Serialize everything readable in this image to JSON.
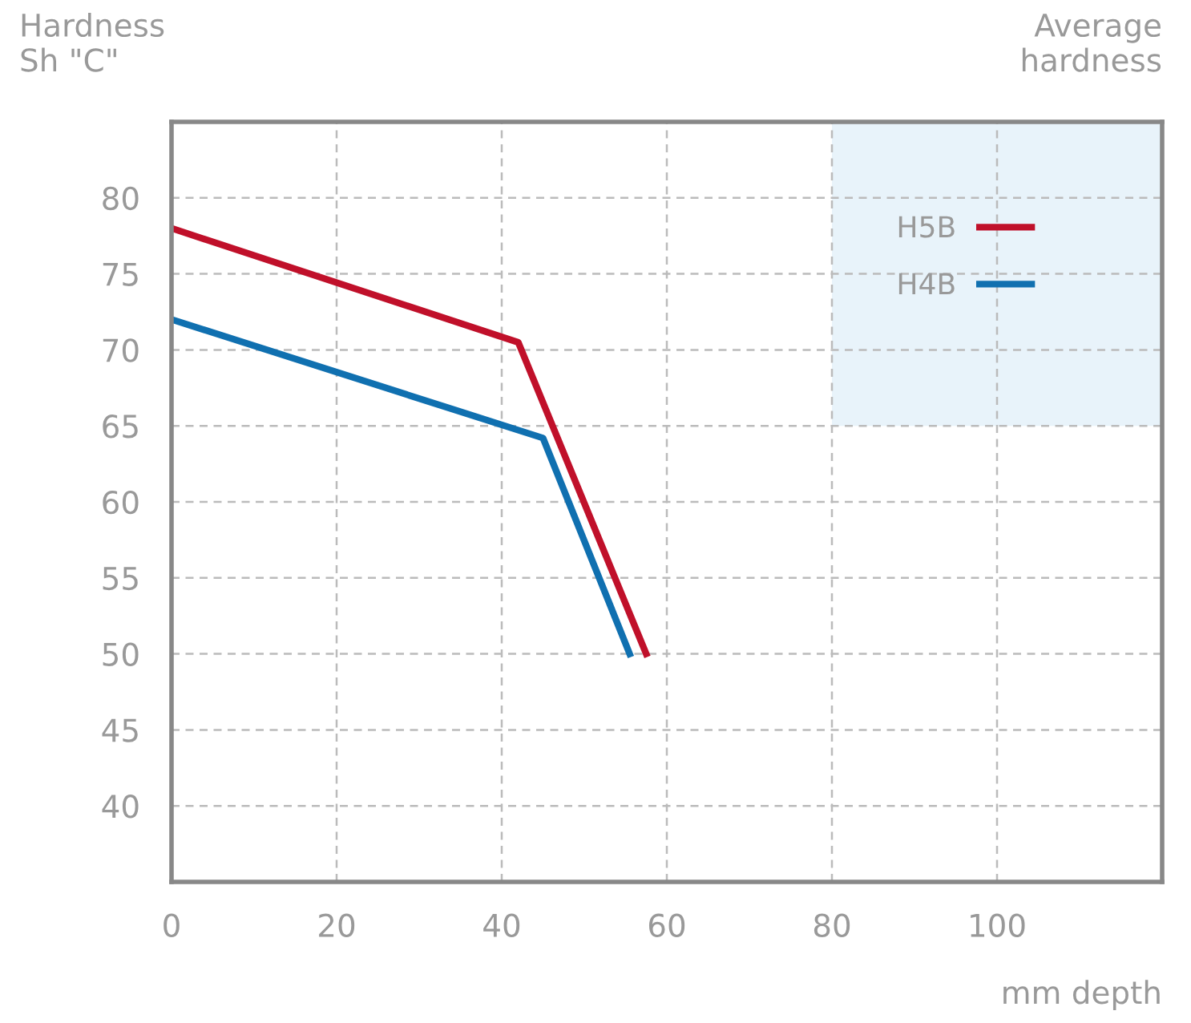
{
  "chart_data": {
    "type": "line",
    "ylabel": "Hardness\nSh \"C\"",
    "xlabel": "mm depth",
    "annotations": [
      "Average\nhardness"
    ],
    "xlim": [
      0,
      120
    ],
    "ylim": [
      35,
      85
    ],
    "xticks": [
      0,
      20,
      40,
      60,
      80,
      100
    ],
    "yticks": [
      40,
      45,
      50,
      55,
      60,
      65,
      70,
      75,
      80
    ],
    "grid": true,
    "legend": "top right",
    "line_style": "solid",
    "marker": "none",
    "bands": [
      {
        "axis": "x",
        "from": 80,
        "to": 120,
        "color": "#e8f3fa"
      }
    ],
    "series": [
      {
        "name": "H5B",
        "color": "#c0102a",
        "x": [
          0,
          42,
          57.5
        ],
        "values": [
          78,
          70.5,
          50
        ]
      },
      {
        "name": "H4B",
        "color": "#1070b0",
        "x": [
          0,
          45,
          55.5
        ],
        "values": [
          72,
          64.2,
          50
        ]
      }
    ]
  }
}
